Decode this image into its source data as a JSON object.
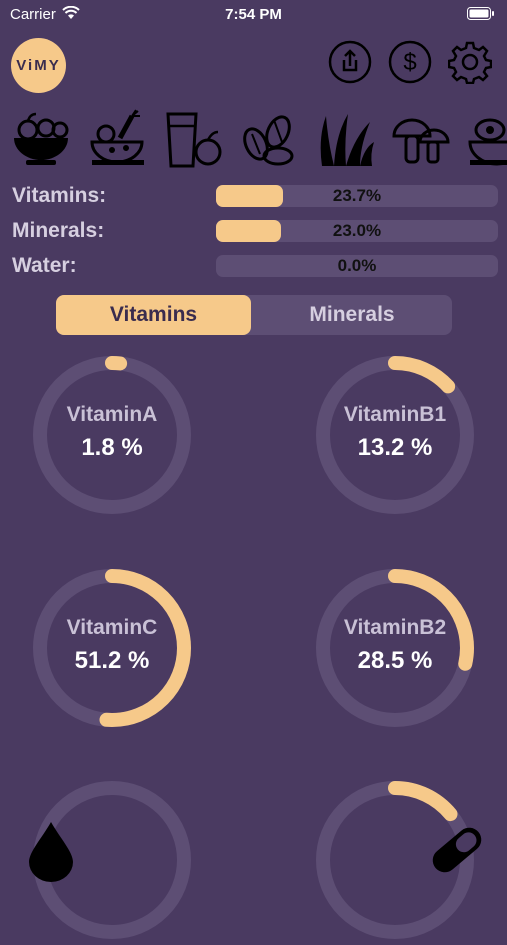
{
  "status": {
    "carrier": "Carrier",
    "time": "7:54 PM"
  },
  "logo": {
    "text": "ViMY"
  },
  "header_buttons": [
    {
      "name": "share-icon"
    },
    {
      "name": "dollar-icon"
    },
    {
      "name": "gear-icon"
    }
  ],
  "food_categories": [
    "fruit-bowl-icon",
    "vegetables-icon",
    "drinks-icon",
    "nuts-icon",
    "grains-icon",
    "mushrooms-icon",
    "meat-icon"
  ],
  "summary": [
    {
      "label": "Vitamins:",
      "value": "23.7%",
      "fraction": 0.237
    },
    {
      "label": "Minerals:",
      "value": "23.0%",
      "fraction": 0.23
    },
    {
      "label": "Water:",
      "value": "0.0%",
      "fraction": 0.0
    }
  ],
  "tabs": {
    "left": "Vitamins",
    "right": "Minerals",
    "selected": "Vitamins"
  },
  "gauges": [
    {
      "name": "VitaminA",
      "value": "1.8 %",
      "fraction": 0.018
    },
    {
      "name": "VitaminB1",
      "value": "13.2 %",
      "fraction": 0.132
    },
    {
      "name": "VitaminC",
      "value": "51.2 %",
      "fraction": 0.512
    },
    {
      "name": "VitaminB2",
      "value": "28.5 %",
      "fraction": 0.285
    },
    {
      "name": "",
      "value": "",
      "fraction": 0.0
    },
    {
      "name": "",
      "value": "",
      "fraction": 0.14
    }
  ],
  "bottom_buttons": [
    {
      "name": "water-drop-icon"
    },
    {
      "name": "pill-icon"
    }
  ],
  "colors": {
    "background": "#4a3a61",
    "accent": "#f6c98a",
    "track": "#5d4e74"
  }
}
